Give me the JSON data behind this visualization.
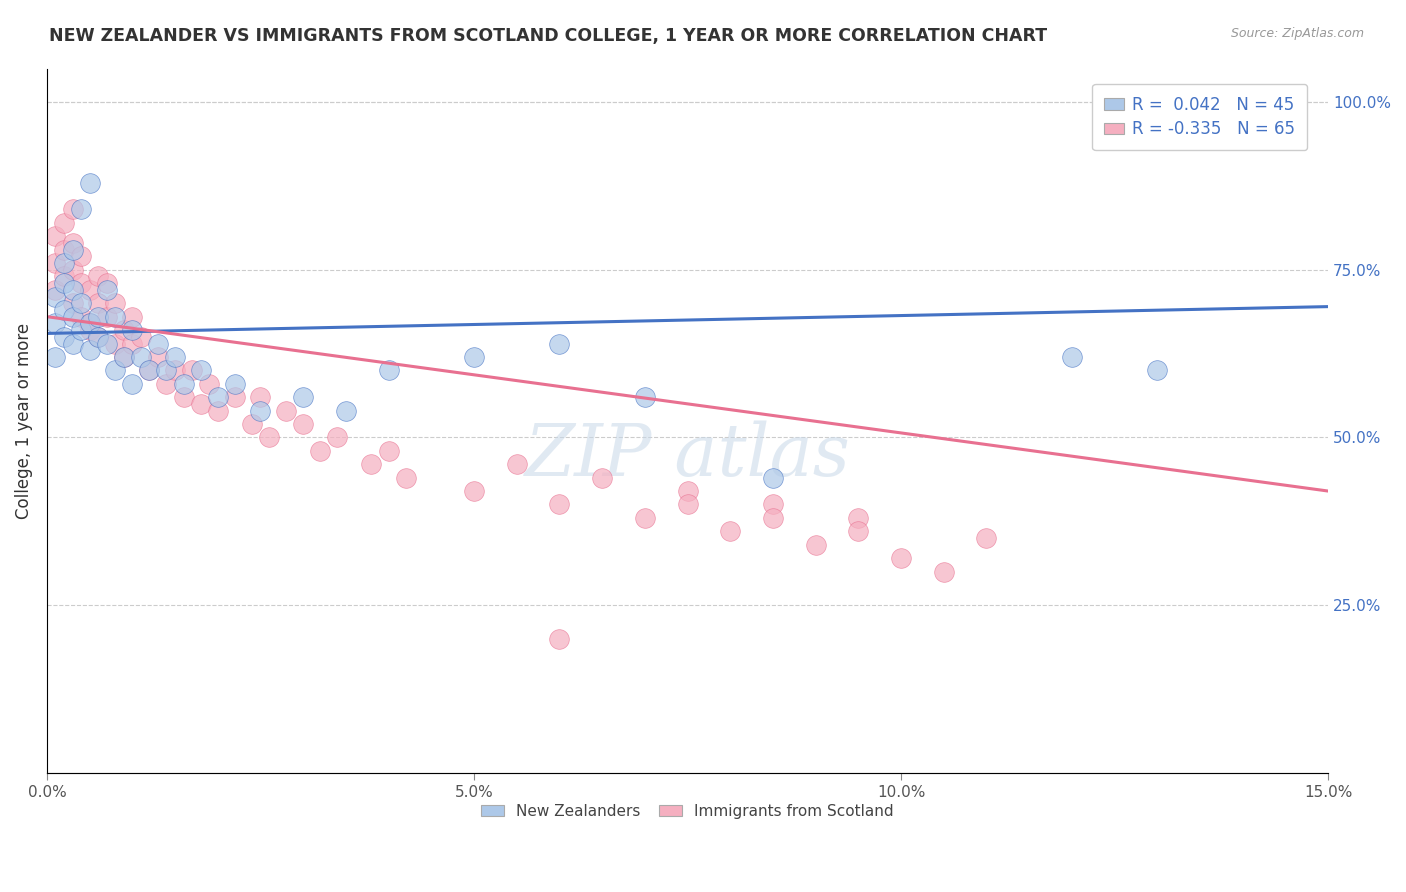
{
  "title": "NEW ZEALANDER VS IMMIGRANTS FROM SCOTLAND COLLEGE, 1 YEAR OR MORE CORRELATION CHART",
  "source": "Source: ZipAtlas.com",
  "ylabel": "College, 1 year or more",
  "xmin": 0.0,
  "xmax": 0.15,
  "ymin": 0.0,
  "ymax": 1.05,
  "ytick_values": [
    0.25,
    0.5,
    0.75,
    1.0
  ],
  "xtick_values": [
    0.0,
    0.05,
    0.1,
    0.15
  ],
  "legend_bottom": [
    "New Zealanders",
    "Immigrants from Scotland"
  ],
  "r_nz": 0.042,
  "n_nz": 45,
  "r_scot": -0.335,
  "n_scot": 65,
  "nz_color": "#adc8e8",
  "scot_color": "#f5afc0",
  "nz_line_color": "#4472c4",
  "scot_line_color": "#e87090",
  "nz_scatter_x": [
    0.001,
    0.001,
    0.001,
    0.002,
    0.002,
    0.002,
    0.002,
    0.003,
    0.003,
    0.003,
    0.003,
    0.004,
    0.004,
    0.004,
    0.005,
    0.005,
    0.005,
    0.006,
    0.006,
    0.007,
    0.007,
    0.008,
    0.008,
    0.009,
    0.01,
    0.01,
    0.011,
    0.012,
    0.013,
    0.014,
    0.015,
    0.016,
    0.018,
    0.02,
    0.022,
    0.025,
    0.03,
    0.035,
    0.04,
    0.05,
    0.06,
    0.07,
    0.085,
    0.12,
    0.13
  ],
  "nz_scatter_y": [
    0.62,
    0.67,
    0.71,
    0.65,
    0.69,
    0.73,
    0.76,
    0.64,
    0.68,
    0.72,
    0.78,
    0.66,
    0.7,
    0.84,
    0.63,
    0.67,
    0.88,
    0.65,
    0.68,
    0.64,
    0.72,
    0.6,
    0.68,
    0.62,
    0.58,
    0.66,
    0.62,
    0.6,
    0.64,
    0.6,
    0.62,
    0.58,
    0.6,
    0.56,
    0.58,
    0.54,
    0.56,
    0.54,
    0.6,
    0.62,
    0.64,
    0.56,
    0.44,
    0.62,
    0.6
  ],
  "scot_scatter_x": [
    0.001,
    0.001,
    0.001,
    0.002,
    0.002,
    0.002,
    0.003,
    0.003,
    0.003,
    0.003,
    0.004,
    0.004,
    0.004,
    0.005,
    0.005,
    0.005,
    0.006,
    0.006,
    0.006,
    0.007,
    0.007,
    0.008,
    0.008,
    0.009,
    0.009,
    0.01,
    0.01,
    0.011,
    0.012,
    0.013,
    0.014,
    0.015,
    0.016,
    0.017,
    0.018,
    0.019,
    0.02,
    0.022,
    0.024,
    0.025,
    0.026,
    0.028,
    0.03,
    0.032,
    0.034,
    0.038,
    0.04,
    0.042,
    0.05,
    0.055,
    0.06,
    0.065,
    0.07,
    0.075,
    0.08,
    0.085,
    0.09,
    0.095,
    0.1,
    0.11,
    0.095,
    0.105,
    0.085,
    0.075,
    0.06
  ],
  "scot_scatter_y": [
    0.76,
    0.8,
    0.72,
    0.74,
    0.78,
    0.82,
    0.7,
    0.75,
    0.79,
    0.84,
    0.68,
    0.73,
    0.77,
    0.66,
    0.72,
    0.67,
    0.7,
    0.65,
    0.74,
    0.68,
    0.73,
    0.64,
    0.7,
    0.66,
    0.62,
    0.68,
    0.64,
    0.65,
    0.6,
    0.62,
    0.58,
    0.6,
    0.56,
    0.6,
    0.55,
    0.58,
    0.54,
    0.56,
    0.52,
    0.56,
    0.5,
    0.54,
    0.52,
    0.48,
    0.5,
    0.46,
    0.48,
    0.44,
    0.42,
    0.46,
    0.4,
    0.44,
    0.38,
    0.42,
    0.36,
    0.4,
    0.34,
    0.38,
    0.32,
    0.35,
    0.36,
    0.3,
    0.38,
    0.4,
    0.2
  ],
  "nz_line_x": [
    0.0,
    0.15
  ],
  "nz_line_y": [
    0.655,
    0.695
  ],
  "scot_line_x": [
    0.0,
    0.15
  ],
  "scot_line_y": [
    0.68,
    0.42
  ]
}
